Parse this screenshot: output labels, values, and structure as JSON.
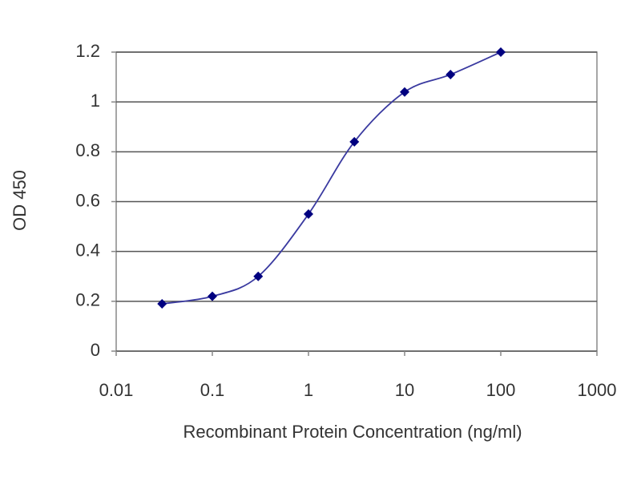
{
  "chart_data": {
    "type": "line",
    "xlabel": "Recombinant Protein Concentration (ng/ml)",
    "ylabel": "OD 450",
    "x": [
      0.03,
      0.1,
      0.3,
      1,
      3,
      10,
      30,
      100
    ],
    "values": [
      0.19,
      0.22,
      0.3,
      0.55,
      0.84,
      1.04,
      1.11,
      1.2
    ],
    "color": "#3a3aa0",
    "marker_color": "#000080",
    "xscale": "log",
    "xlim": [
      0.01,
      1000
    ],
    "xticks": [
      0.01,
      0.1,
      1,
      10,
      100,
      1000
    ],
    "ylim": [
      0,
      1.2
    ],
    "yticks": [
      0,
      0.2,
      0.4,
      0.6,
      0.8,
      1,
      1.2
    ],
    "grid": true
  }
}
